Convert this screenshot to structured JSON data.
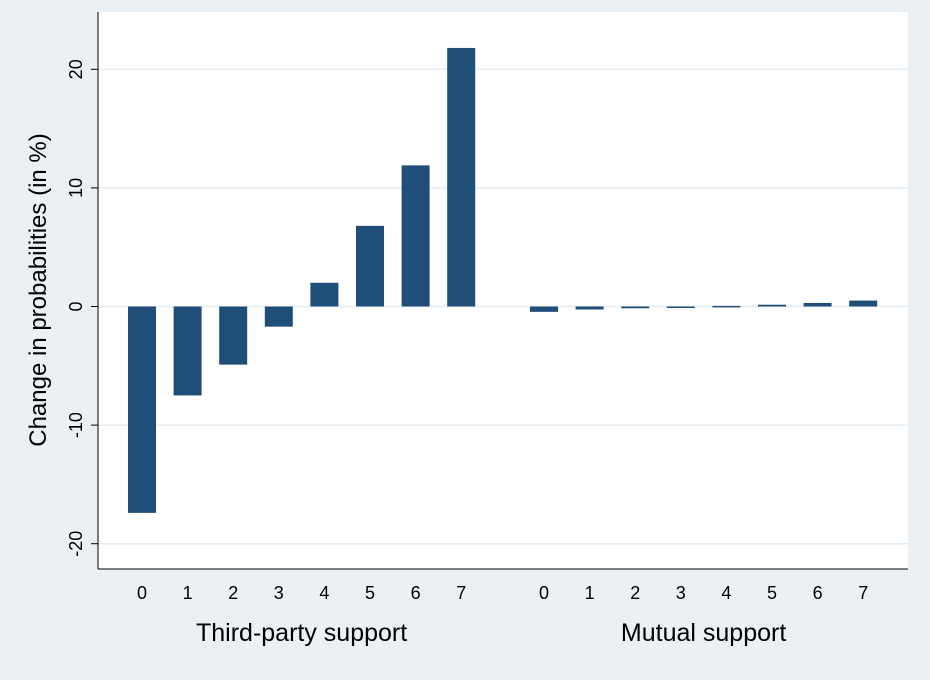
{
  "chart_data": {
    "type": "bar",
    "ylabel": "Change in probabilities (in %)",
    "ylim": [
      -22,
      24
    ],
    "yticks": [
      -20,
      -10,
      0,
      10,
      20
    ],
    "grid": true,
    "bar_color": "#1f4e79",
    "background_color": "#eaf0f3",
    "plot_background_color": "#ffffff",
    "grid_color": "#e4eef2",
    "groups": [
      {
        "name": "Third-party support",
        "categories": [
          "0",
          "1",
          "2",
          "3",
          "4",
          "5",
          "6",
          "7"
        ],
        "values": [
          -17.4,
          -7.5,
          -4.9,
          -1.7,
          2.0,
          6.8,
          11.9,
          21.8
        ]
      },
      {
        "name": "Mutual support",
        "categories": [
          "0",
          "1",
          "2",
          "3",
          "4",
          "5",
          "6",
          "7"
        ],
        "values": [
          -0.45,
          -0.25,
          -0.15,
          -0.07,
          0.05,
          0.15,
          0.3,
          0.5
        ]
      }
    ]
  }
}
